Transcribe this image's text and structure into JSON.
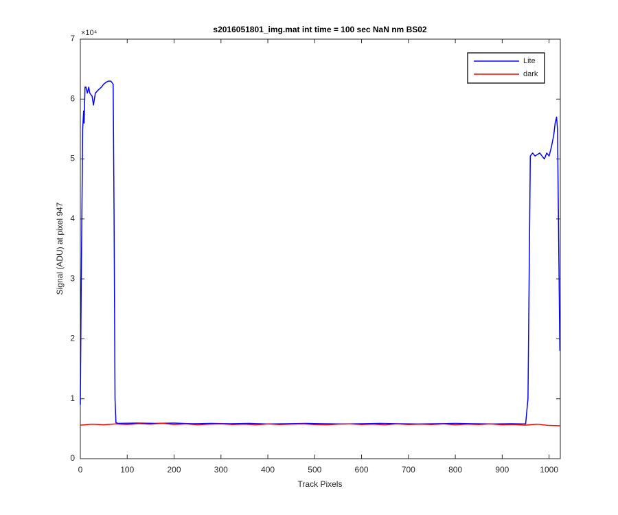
{
  "chart_data": {
    "type": "line",
    "title": "s2016051801_img.mat int time = 100 sec  NaN nm BS02",
    "x_label": "Track Pixels",
    "y_label": "Signal (ADU) at pixel 947",
    "y_multiplier": "×10⁴",
    "xlim": [
      0,
      1024
    ],
    "ylim": [
      0,
      70000
    ],
    "xticks": [
      0,
      100,
      200,
      300,
      400,
      500,
      600,
      700,
      800,
      900,
      1000
    ],
    "yticks": [
      {
        "value": 0,
        "label": "0"
      },
      {
        "value": 10000,
        "label": "1"
      },
      {
        "value": 20000,
        "label": "2"
      },
      {
        "value": 30000,
        "label": "3"
      },
      {
        "value": 40000,
        "label": "4"
      },
      {
        "value": 50000,
        "label": "5"
      },
      {
        "value": 60000,
        "label": "6"
      },
      {
        "value": 70000,
        "label": "7"
      }
    ],
    "grid": false,
    "legend": "top-right",
    "series": [
      {
        "name": "Lite",
        "color": "#0000ff",
        "x": [
          0,
          2,
          5,
          7,
          8,
          10,
          12,
          15,
          18,
          20,
          25,
          28,
          32,
          38,
          45,
          50,
          55,
          60,
          65,
          70,
          72,
          74,
          76,
          80,
          120,
          160,
          200,
          240,
          280,
          320,
          360,
          400,
          440,
          480,
          520,
          560,
          600,
          640,
          680,
          720,
          760,
          800,
          840,
          880,
          920,
          950,
          955,
          960,
          965,
          970,
          980,
          990,
          995,
          1000,
          1005,
          1010,
          1013,
          1016,
          1018,
          1020,
          1023
        ],
        "values": [
          9000,
          30000,
          55000,
          58000,
          56000,
          62000,
          62000,
          61000,
          62000,
          61000,
          60500,
          59000,
          61000,
          61500,
          62000,
          62500,
          62800,
          63000,
          63000,
          62500,
          40000,
          10000,
          6000,
          5900,
          5950,
          5900,
          5950,
          5850,
          5900,
          5850,
          5900,
          5800,
          5850,
          5900,
          5850,
          5800,
          5850,
          5900,
          5850,
          5800,
          5850,
          5900,
          5850,
          5800,
          5850,
          5800,
          10000,
          50500,
          51000,
          50500,
          51000,
          50000,
          51000,
          50500,
          52000,
          54000,
          56000,
          57000,
          55000,
          40000,
          18000
        ]
      },
      {
        "name": "dark",
        "color": "#ff0000",
        "x": [
          0,
          25,
          50,
          75,
          100,
          125,
          150,
          175,
          200,
          225,
          250,
          275,
          300,
          325,
          350,
          375,
          400,
          425,
          450,
          475,
          500,
          525,
          550,
          575,
          600,
          625,
          650,
          675,
          700,
          725,
          750,
          775,
          800,
          825,
          850,
          875,
          900,
          925,
          950,
          975,
          1000,
          1023
        ],
        "values": [
          5600,
          5750,
          5650,
          5800,
          5700,
          5850,
          5750,
          5900,
          5700,
          5800,
          5650,
          5750,
          5800,
          5700,
          5750,
          5650,
          5800,
          5700,
          5750,
          5800,
          5700,
          5650,
          5750,
          5800,
          5700,
          5750,
          5650,
          5800,
          5700,
          5750,
          5700,
          5800,
          5650,
          5750,
          5700,
          5800,
          5650,
          5700,
          5600,
          5750,
          5550,
          5500
        ]
      }
    ]
  }
}
